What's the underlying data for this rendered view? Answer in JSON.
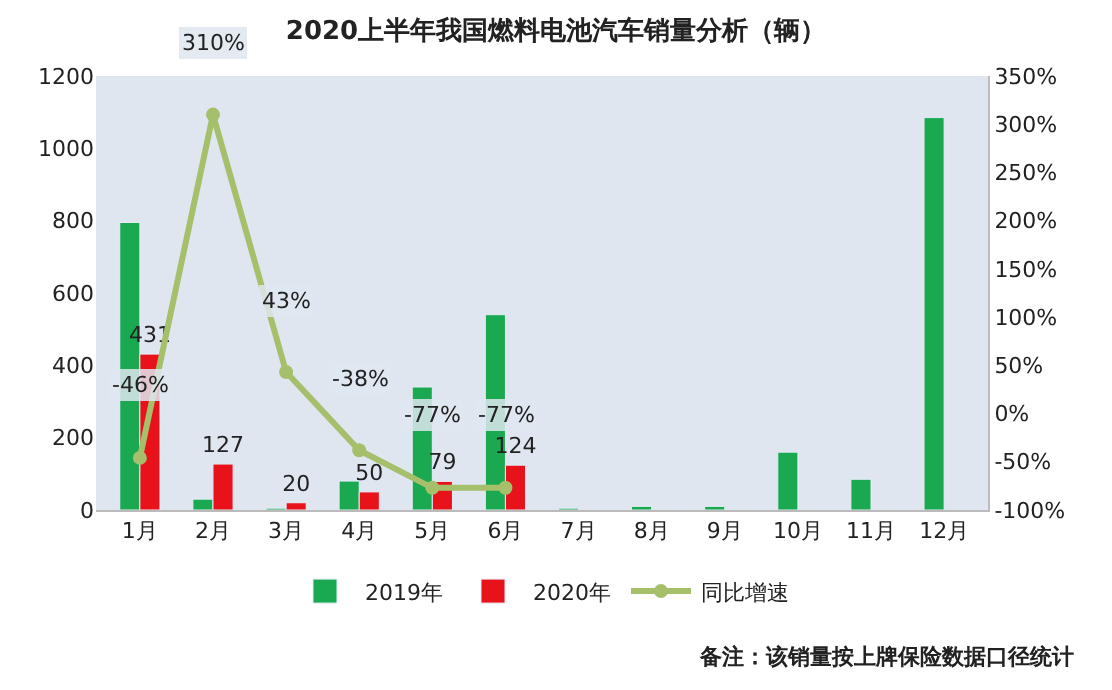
{
  "chart_data": {
    "type": "bar",
    "title": "2020上半年我国燃料电池汽车销量分析（辆）",
    "categories": [
      "1月",
      "2月",
      "3月",
      "4月",
      "5月",
      "6月",
      "7月",
      "8月",
      "9月",
      "10月",
      "11月",
      "12月"
    ],
    "series": [
      {
        "name": "2019年",
        "color": "#1aa850",
        "values": [
          795,
          30,
          5,
          80,
          340,
          540,
          5,
          10,
          10,
          160,
          85,
          1085
        ]
      },
      {
        "name": "2020年",
        "color": "#e8121b",
        "values": [
          431,
          127,
          20,
          50,
          79,
          124,
          null,
          null,
          null,
          null,
          null,
          null
        ],
        "value_labels": [
          "431",
          "127",
          "20",
          "50",
          "79",
          "124",
          null,
          null,
          null,
          null,
          null,
          null
        ]
      },
      {
        "name": "同比增速",
        "type": "line",
        "axis": "y2",
        "color": "#a5bf6b",
        "marker": "circle",
        "values": [
          -46,
          310,
          43,
          -38,
          -77,
          -77,
          null,
          null,
          null,
          null,
          null,
          null
        ],
        "value_labels": [
          "-46%",
          "310%",
          "43%",
          "-38%",
          "-77%",
          "-77%",
          null,
          null,
          null,
          null,
          null,
          null
        ]
      }
    ],
    "ylim": [
      0,
      1200
    ],
    "yticks": [
      0,
      200,
      400,
      600,
      800,
      1000,
      1200
    ],
    "y2lim": [
      -100,
      350
    ],
    "y2ticks": [
      {
        "value": -100,
        "label": "-100%"
      },
      {
        "value": -50,
        "label": "-50%"
      },
      {
        "value": 0,
        "label": "0%"
      },
      {
        "value": 50,
        "label": "50%"
      },
      {
        "value": 100,
        "label": "100%"
      },
      {
        "value": 150,
        "label": "150%"
      },
      {
        "value": 200,
        "label": "200%"
      },
      {
        "value": 250,
        "label": "250%"
      },
      {
        "value": 300,
        "label": "300%"
      },
      {
        "value": 350,
        "label": "350%"
      }
    ],
    "grid": false,
    "legend": "bottom",
    "annotations": [
      "备注：该销量按上牌保险数据口径统计"
    ]
  }
}
